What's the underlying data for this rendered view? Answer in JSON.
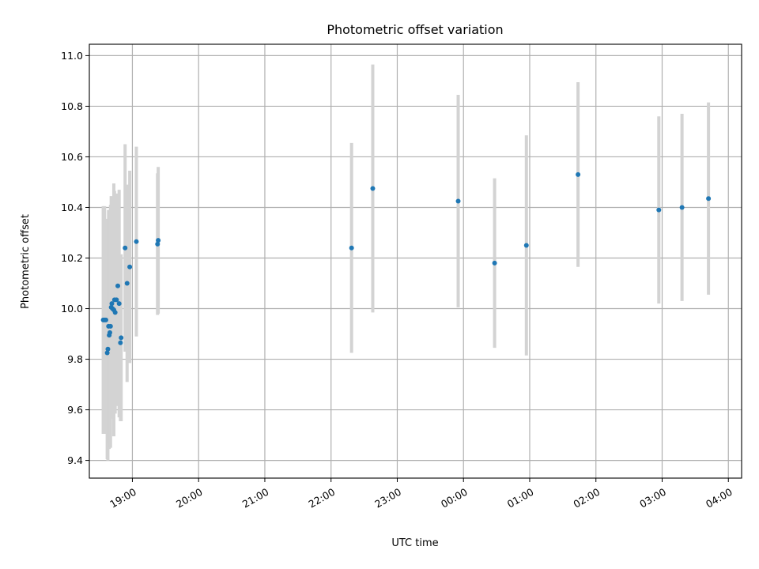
{
  "chart_data": {
    "type": "scatter",
    "title": "Photometric offset variation",
    "xlabel": "UTC time",
    "ylabel": "Photometric offset",
    "x_unit": "hours since 00:00 UTC of observing night (values >= 24 are after midnight)",
    "xlim": [
      18.35,
      28.2
    ],
    "ylim": [
      9.33,
      11.045
    ],
    "x_ticks": [
      {
        "value": 19,
        "label": "19:00"
      },
      {
        "value": 20,
        "label": "20:00"
      },
      {
        "value": 21,
        "label": "21:00"
      },
      {
        "value": 22,
        "label": "22:00"
      },
      {
        "value": 23,
        "label": "23:00"
      },
      {
        "value": 24,
        "label": "00:00"
      },
      {
        "value": 25,
        "label": "01:00"
      },
      {
        "value": 26,
        "label": "02:00"
      },
      {
        "value": 27,
        "label": "03:00"
      },
      {
        "value": 28,
        "label": "04:00"
      }
    ],
    "y_ticks": [
      {
        "value": 9.4,
        "label": "9.4"
      },
      {
        "value": 9.6,
        "label": "9.6"
      },
      {
        "value": 9.8,
        "label": "9.8"
      },
      {
        "value": 10.0,
        "label": "10.0"
      },
      {
        "value": 10.2,
        "label": "10.2"
      },
      {
        "value": 10.4,
        "label": "10.4"
      },
      {
        "value": 10.6,
        "label": "10.6"
      },
      {
        "value": 10.8,
        "label": "10.8"
      },
      {
        "value": 11.0,
        "label": "11.0"
      }
    ],
    "grid": true,
    "colors": {
      "point": "#1f77b4",
      "errorbar": "#d3d3d3",
      "grid": "#b0b0b0"
    },
    "points": [
      {
        "x": 18.56,
        "y": 9.955,
        "err": 0.45
      },
      {
        "x": 18.58,
        "y": 9.955,
        "err": 0.45
      },
      {
        "x": 18.6,
        "y": 9.955,
        "err": 0.4
      },
      {
        "x": 18.62,
        "y": 9.825,
        "err": 0.42
      },
      {
        "x": 18.63,
        "y": 9.84,
        "err": 0.44
      },
      {
        "x": 18.64,
        "y": 9.93,
        "err": 0.46
      },
      {
        "x": 18.65,
        "y": 9.895,
        "err": 0.45
      },
      {
        "x": 18.66,
        "y": 9.905,
        "err": 0.45
      },
      {
        "x": 18.67,
        "y": 9.93,
        "err": 0.48
      },
      {
        "x": 18.68,
        "y": 10.005,
        "err": 0.44
      },
      {
        "x": 18.69,
        "y": 10.02,
        "err": 0.4
      },
      {
        "x": 18.7,
        "y": 10.0,
        "err": 0.42
      },
      {
        "x": 18.72,
        "y": 9.995,
        "err": 0.5
      },
      {
        "x": 18.73,
        "y": 10.035,
        "err": 0.43
      },
      {
        "x": 18.74,
        "y": 9.985,
        "err": 0.4
      },
      {
        "x": 18.76,
        "y": 10.035,
        "err": 0.42
      },
      {
        "x": 18.78,
        "y": 10.09,
        "err": 0.36
      },
      {
        "x": 18.8,
        "y": 10.02,
        "err": 0.45
      },
      {
        "x": 18.82,
        "y": 9.865,
        "err": 0.31
      },
      {
        "x": 18.83,
        "y": 9.885,
        "err": 0.33
      },
      {
        "x": 18.89,
        "y": 10.24,
        "err": 0.41
      },
      {
        "x": 18.92,
        "y": 10.1,
        "err": 0.39
      },
      {
        "x": 18.96,
        "y": 10.165,
        "err": 0.38
      },
      {
        "x": 19.06,
        "y": 10.265,
        "err": 0.375
      },
      {
        "x": 19.38,
        "y": 10.255,
        "err": 0.28
      },
      {
        "x": 19.39,
        "y": 10.27,
        "err": 0.29
      },
      {
        "x": 22.31,
        "y": 10.24,
        "err": 0.415
      },
      {
        "x": 22.63,
        "y": 10.475,
        "err": 0.49
      },
      {
        "x": 23.92,
        "y": 10.425,
        "err": 0.42
      },
      {
        "x": 24.47,
        "y": 10.18,
        "err": 0.335
      },
      {
        "x": 24.95,
        "y": 10.25,
        "err": 0.435
      },
      {
        "x": 25.73,
        "y": 10.53,
        "err": 0.365
      },
      {
        "x": 26.95,
        "y": 10.39,
        "err": 0.37
      },
      {
        "x": 27.3,
        "y": 10.4,
        "err": 0.37
      },
      {
        "x": 27.7,
        "y": 10.435,
        "err": 0.38
      }
    ]
  }
}
